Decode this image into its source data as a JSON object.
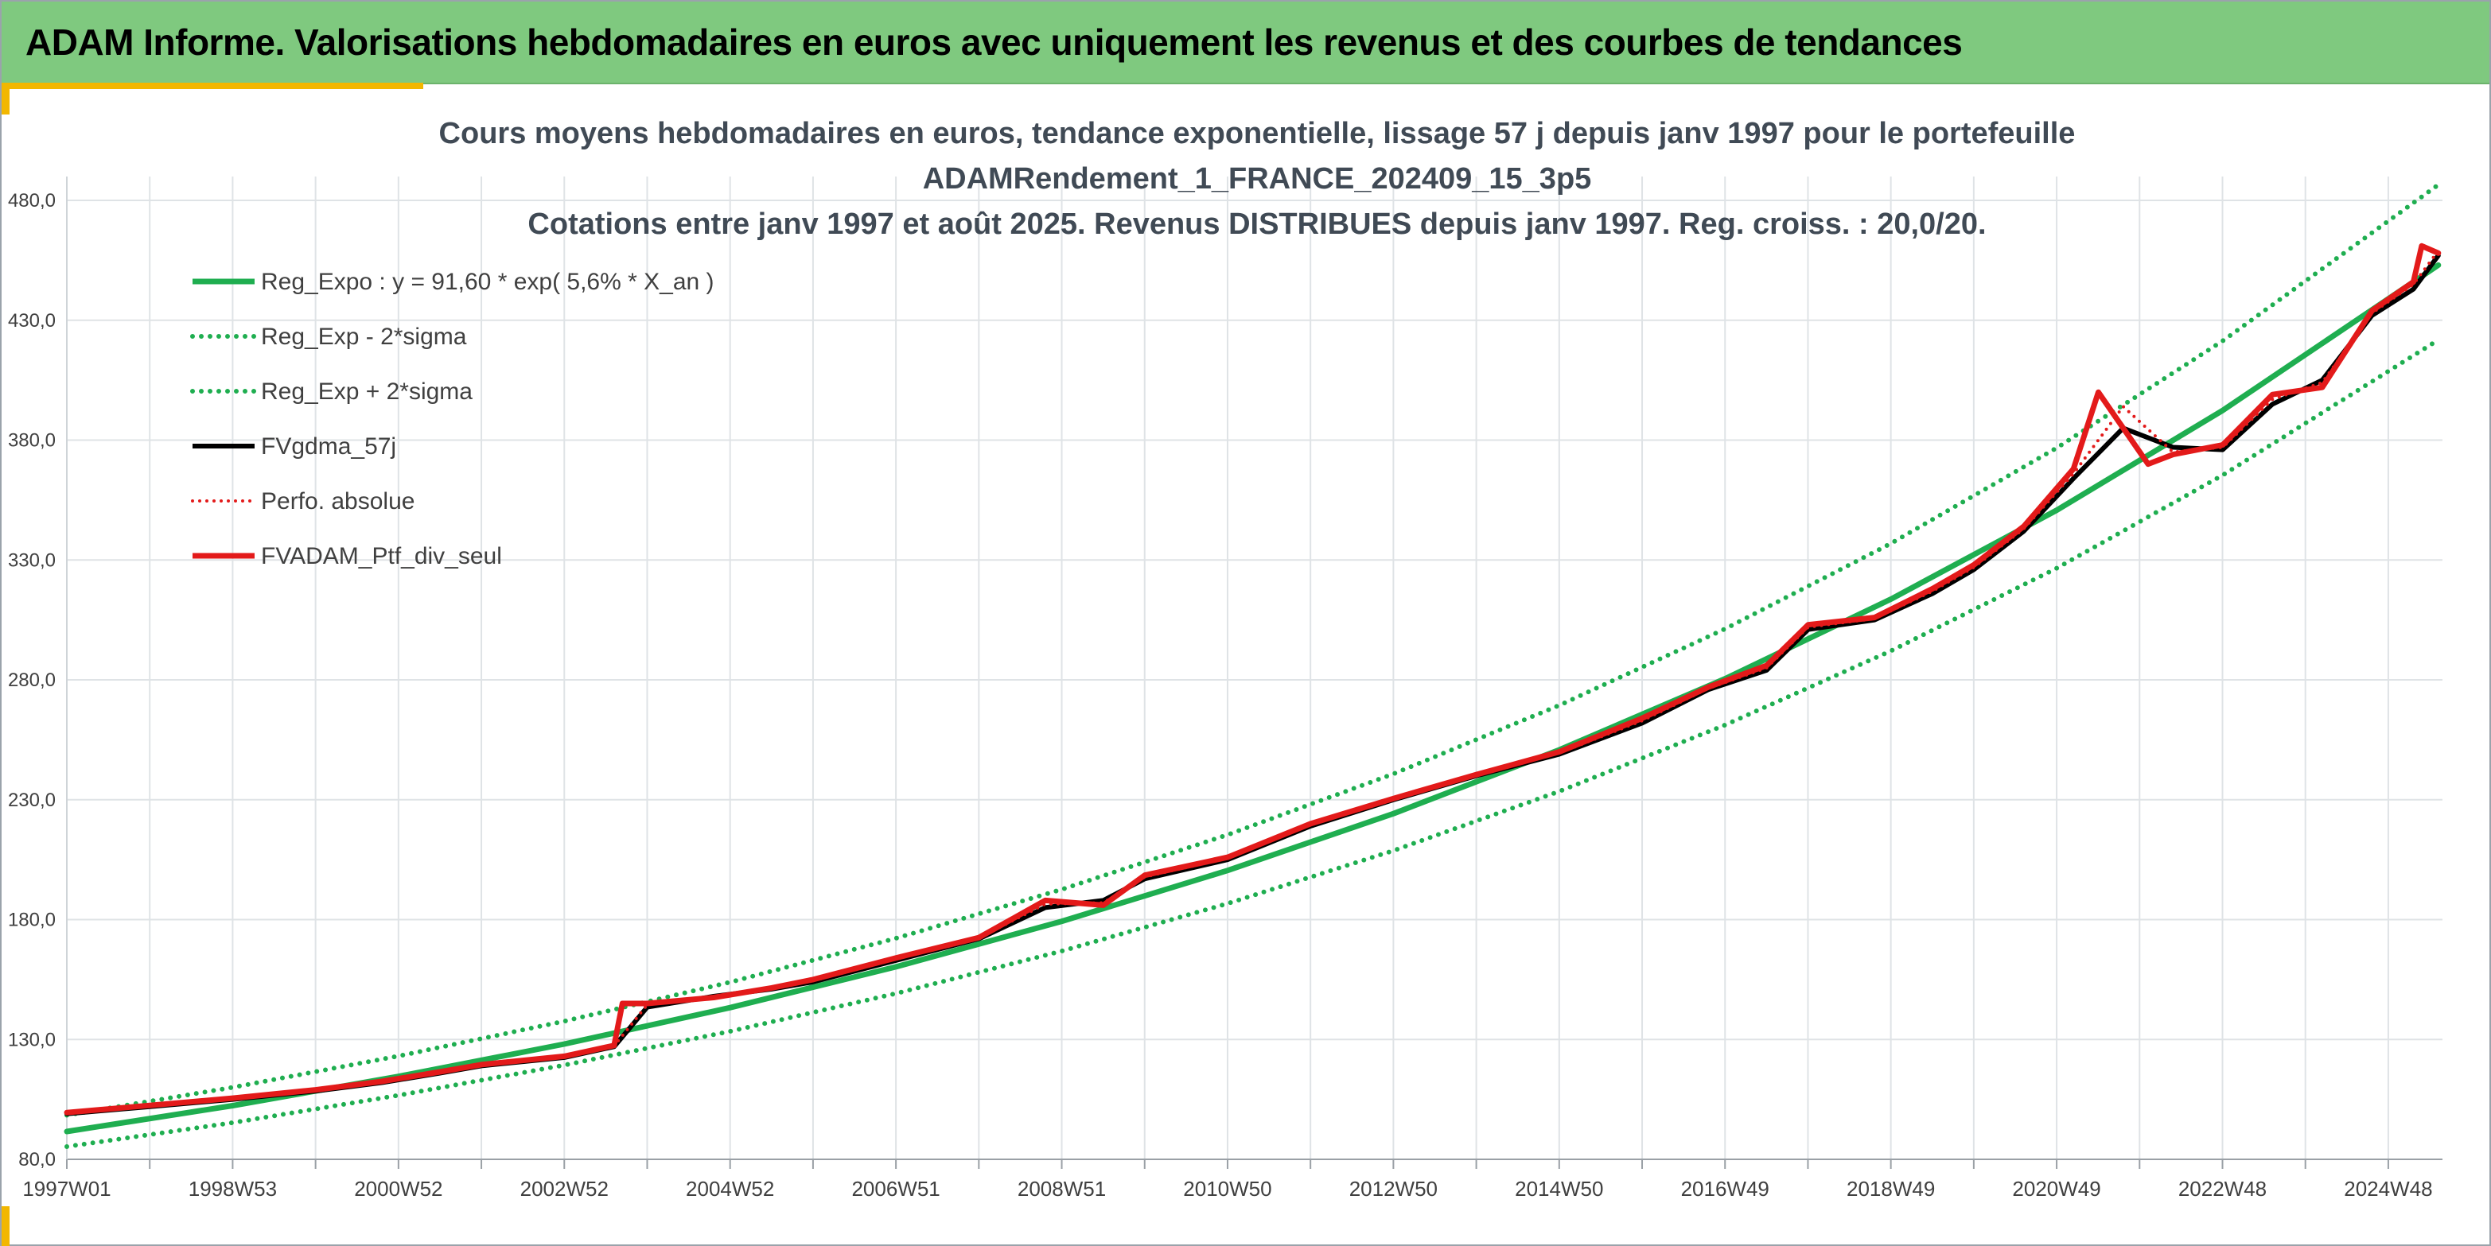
{
  "banner": {
    "title": "ADAM Informe. Valorisations hebdomadaires en euros avec uniquement les revenus et des courbes de tendances"
  },
  "colors": {
    "banner_bg": "#7fc97f",
    "accent": "#f2b700",
    "reg_expo": "#1fae50",
    "sigma_bands": "#1fae50",
    "moving_average": "#000000",
    "perf_absolue": "#e31a1a",
    "portfolio": "#e31a1a",
    "grid": "#dfe3e6"
  },
  "chart_data": {
    "type": "line",
    "title_lines": [
      "Cours moyens hebdomadaires en euros, tendance exponentielle, lissage 57 j depuis janv 1997 pour le portefeuille",
      "ADAMRendement_1_FRANCE_202409_15_3p5",
      "Cotations entre janv 1997 et août 2025. Revenus DISTRIBUES depuis janv 1997. Reg. croiss. : 20,0/20."
    ],
    "xlabel": "",
    "ylabel": "",
    "x_range_years": [
      1997.0,
      2025.65
    ],
    "ylim": [
      80,
      480
    ],
    "y_ticks": [
      "80,0",
      "130,0",
      "180,0",
      "230,0",
      "280,0",
      "330,0",
      "380,0",
      "430,0",
      "480,0"
    ],
    "x_ticks": [
      "1997W01",
      "1998W53",
      "2000W52",
      "2002W52",
      "2004W52",
      "2006W51",
      "2008W51",
      "2010W50",
      "2012W50",
      "2014W50",
      "2016W49",
      "2018W49",
      "2020W49",
      "2022W48",
      "2024W48"
    ],
    "grid": true,
    "legend_position": "top-left",
    "regression": {
      "a": 91.6,
      "rate_percent": 5.6,
      "sigma_factor": 1.074
    },
    "series": [
      {
        "name": "Reg_Expo : y = 91,60 * exp( 5,6% *  X_an )",
        "style": "solid",
        "color": "#1fae50",
        "x": [
          1997.0,
          1999.0,
          2001.0,
          2003.0,
          2005.0,
          2007.0,
          2009.0,
          2011.0,
          2013.0,
          2015.0,
          2017.0,
          2019.0,
          2021.0,
          2023.0,
          2025.6
        ],
        "values": [
          91.6,
          102.4,
          114.6,
          128.1,
          143.3,
          160.3,
          179.3,
          200.5,
          224.2,
          250.8,
          280.5,
          313.7,
          350.8,
          392.4,
          453.0
        ]
      },
      {
        "name": "Reg_Exp - 2*sigma",
        "style": "dotted",
        "color": "#1fae50",
        "x": [
          1997.0,
          1999.0,
          2001.0,
          2003.0,
          2005.0,
          2007.0,
          2009.0,
          2011.0,
          2013.0,
          2015.0,
          2017.0,
          2019.0,
          2021.0,
          2023.0,
          2025.6
        ],
        "values": [
          85.3,
          95.3,
          106.7,
          119.3,
          133.4,
          149.2,
          166.9,
          186.7,
          208.8,
          233.5,
          261.2,
          292.1,
          326.6,
          365.4,
          421.8
        ]
      },
      {
        "name": "Reg_Exp + 2*sigma",
        "style": "dotted",
        "color": "#1fae50",
        "x": [
          1997.0,
          1999.0,
          2001.0,
          2003.0,
          2005.0,
          2007.0,
          2009.0,
          2011.0,
          2013.0,
          2015.0,
          2017.0,
          2019.0,
          2021.0,
          2023.0,
          2025.6
        ],
        "values": [
          98.4,
          110.0,
          123.1,
          137.6,
          153.9,
          172.2,
          192.6,
          215.4,
          240.8,
          269.4,
          301.3,
          336.9,
          376.8,
          421.4,
          486.5
        ]
      },
      {
        "name": "FVgdma_57j",
        "style": "solid",
        "color": "#000000",
        "x": [
          1997.0,
          1998.0,
          1999.0,
          2000.0,
          2000.8,
          2001.5,
          2002.0,
          2003.0,
          2003.6,
          2004.0,
          2004.8,
          2005.5,
          2006.0,
          2007.0,
          2008.0,
          2008.8,
          2009.5,
          2010.0,
          2011.0,
          2012.0,
          2013.0,
          2014.0,
          2015.0,
          2016.0,
          2016.8,
          2017.5,
          2018.0,
          2018.8,
          2019.5,
          2020.0,
          2020.6,
          2021.2,
          2021.8,
          2022.4,
          2023.0,
          2023.6,
          2024.2,
          2024.8,
          2025.3,
          2025.6
        ],
        "values": [
          99.0,
          102.0,
          105.0,
          108.5,
          112.0,
          116.0,
          119.0,
          122.5,
          127.0,
          143.5,
          148.0,
          151.0,
          154.0,
          163.0,
          172.0,
          185.0,
          188.0,
          197.0,
          205.0,
          219.0,
          230.0,
          240.0,
          249.0,
          262.0,
          276.0,
          284.0,
          301.0,
          305.0,
          316.0,
          326.0,
          342.0,
          364.0,
          385.0,
          377.0,
          376.0,
          395.0,
          405.0,
          432.0,
          443.0,
          457.0
        ]
      },
      {
        "name": "Perfo. absolue",
        "style": "dotted",
        "color": "#e31a1a",
        "x": [
          1997.0,
          1998.0,
          1999.0,
          2000.0,
          2000.8,
          2001.5,
          2002.0,
          2003.0,
          2003.6,
          2004.0,
          2004.8,
          2005.5,
          2006.0,
          2007.0,
          2008.0,
          2008.8,
          2009.5,
          2010.0,
          2011.0,
          2012.0,
          2013.0,
          2014.0,
          2015.0,
          2016.0,
          2016.8,
          2017.5,
          2018.0,
          2018.8,
          2019.5,
          2020.0,
          2020.6,
          2021.2,
          2021.8,
          2022.4,
          2023.0,
          2023.6,
          2024.2,
          2024.8,
          2025.3,
          2025.6
        ],
        "values": [
          99.3,
          102.3,
          105.3,
          108.8,
          112.3,
          116.3,
          119.3,
          122.8,
          127.3,
          144.5,
          147.7,
          151.3,
          154.5,
          163.5,
          172.3,
          186.5,
          187.0,
          197.8,
          205.6,
          219.6,
          230.4,
          240.4,
          249.5,
          263.0,
          276.5,
          285.0,
          302.0,
          305.5,
          317.0,
          327.0,
          343.0,
          366.0,
          394.0,
          375.0,
          377.0,
          397.0,
          404.0,
          433.0,
          445.0,
          459.0
        ]
      },
      {
        "name": "FVADAM_Ptf_div_seul",
        "style": "solid",
        "color": "#e31a1a",
        "x": [
          1997.0,
          1998.0,
          1999.0,
          2000.0,
          2000.8,
          2001.5,
          2002.0,
          2003.0,
          2003.6,
          2003.7,
          2004.0,
          2004.8,
          2005.5,
          2006.0,
          2007.0,
          2008.0,
          2008.8,
          2009.5,
          2010.0,
          2011.0,
          2012.0,
          2013.0,
          2014.0,
          2015.0,
          2016.0,
          2016.8,
          2017.5,
          2018.0,
          2018.8,
          2019.5,
          2020.0,
          2020.6,
          2021.2,
          2021.5,
          2021.8,
          2022.1,
          2022.4,
          2023.0,
          2023.6,
          2024.2,
          2024.8,
          2025.3,
          2025.4,
          2025.6
        ],
        "values": [
          99.5,
          102.5,
          105.5,
          109.0,
          112.5,
          116.5,
          119.5,
          123.0,
          127.5,
          145.0,
          145.0,
          147.5,
          151.5,
          155.0,
          164.0,
          172.5,
          188.0,
          186.0,
          198.5,
          206.0,
          220.0,
          230.5,
          240.5,
          250.0,
          264.0,
          277.0,
          286.0,
          303.0,
          306.0,
          318.0,
          328.0,
          344.0,
          368.0,
          400.0,
          385.0,
          370.0,
          374.0,
          378.0,
          399.0,
          402.0,
          434.0,
          446.0,
          461.0,
          458.0
        ]
      }
    ]
  }
}
